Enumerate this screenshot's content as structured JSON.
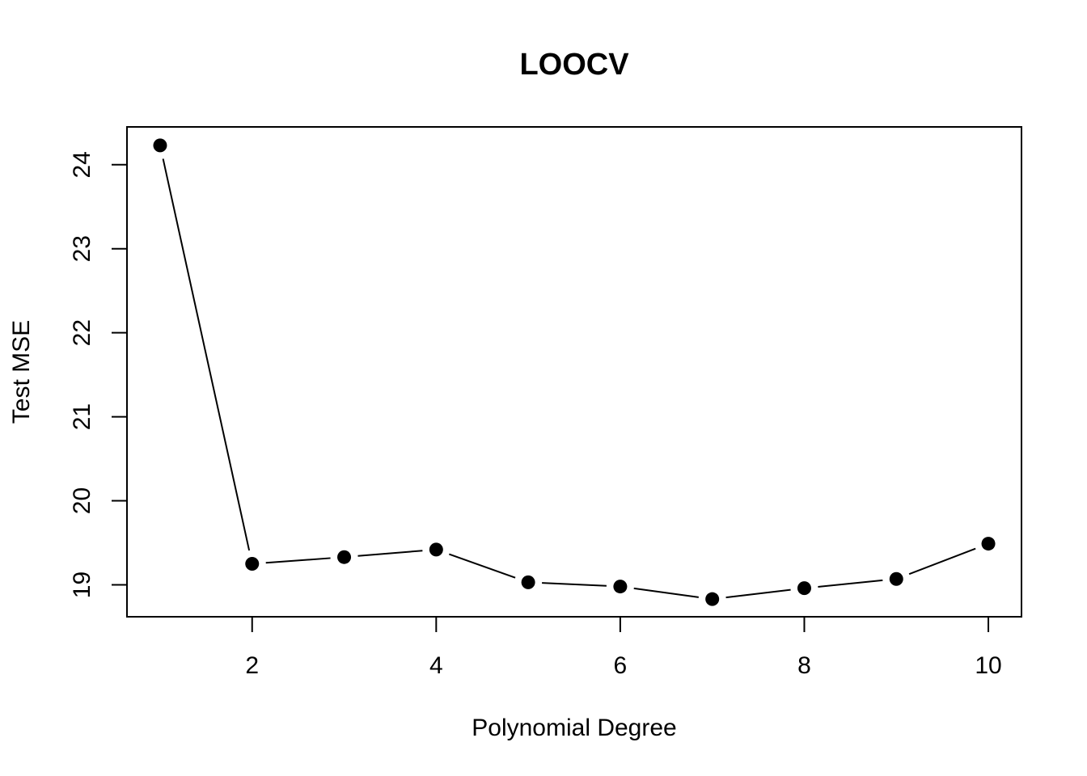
{
  "chart_data": {
    "type": "line",
    "title": "LOOCV",
    "xlabel": "Polynomial Degree",
    "ylabel": "Test MSE",
    "x": [
      1,
      2,
      3,
      4,
      5,
      6,
      7,
      8,
      9,
      10
    ],
    "series": [
      {
        "values": [
          24.23,
          19.25,
          19.33,
          19.42,
          19.03,
          18.98,
          18.83,
          18.96,
          19.07,
          19.49
        ]
      }
    ],
    "xlim": [
      0.64,
      10.36
    ],
    "ylim": [
      18.62,
      24.45
    ],
    "xticks": [
      2,
      4,
      6,
      8,
      10
    ],
    "xtick_labels": [
      "2",
      "4",
      "6",
      "8",
      "10"
    ],
    "yticks": [
      19,
      20,
      21,
      22,
      23,
      24
    ],
    "ytick_labels": [
      "19",
      "20",
      "21",
      "22",
      "23",
      "24"
    ],
    "grid": false,
    "legend": "none",
    "point_style": "filled-circle",
    "line_style": "solid-gapped",
    "colors": {
      "line": "#000000",
      "points": "#000000",
      "frame": "#000000",
      "background": "#ffffff"
    }
  }
}
